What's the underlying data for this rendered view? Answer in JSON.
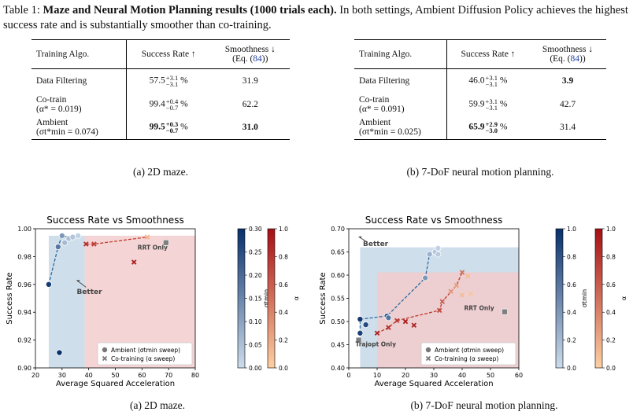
{
  "caption_top": {
    "label": "Table 1:",
    "bold": "Maze and Neural Motion Planning results (1000 trials each).",
    "rest": " In both settings, Ambient Diffusion Policy achieves the highest success rate and is substantially smoother than co-training."
  },
  "tables": [
    {
      "headers": {
        "algo": "Training Algo.",
        "success": "Success Rate ↑",
        "smooth1": "Smoothness ↓",
        "smooth2a": "(Eq. (",
        "smooth2ref": "84",
        "smooth2b": "))"
      },
      "rows": [
        {
          "algo1": "Data Filtering",
          "algo2": "",
          "sr": "57.5",
          "up": "+3.1",
          "down": "−3.1",
          "pct": "%",
          "sm": "31.9"
        },
        {
          "algo1": "Co-train",
          "algo2": "(α* = 0.019)",
          "sr": "99.4",
          "up": "+0.4",
          "down": "−0.7",
          "pct": "%",
          "sm": "62.2"
        },
        {
          "algo1": "Ambient",
          "algo2": "(σt*min = 0.074)",
          "sr": "99.5",
          "up": "+0.3",
          "down": "−0.7",
          "pct": "%",
          "sm": "31.0"
        }
      ],
      "caption": "(a) 2D maze."
    },
    {
      "headers": {
        "algo": "Training Algo.",
        "success": "Success Rate ↑",
        "smooth1": "Smoothness ↓",
        "smooth2a": "(Eq. (",
        "smooth2ref": "84",
        "smooth2b": "))"
      },
      "rows": [
        {
          "algo1": "Data Filtering",
          "algo2": "",
          "sr": "46.0",
          "up": "+3.1",
          "down": "−3.1",
          "pct": "%",
          "sm": "3.9"
        },
        {
          "algo1": "Co-train",
          "algo2": "(α* = 0.091)",
          "sr": "59.9",
          "up": "+3.1",
          "down": "−3.1",
          "pct": "%",
          "sm": "42.7"
        },
        {
          "algo1": "Ambient",
          "algo2": "(σt*min = 0.025)",
          "sr": "65.9",
          "up": "+2.9",
          "down": "−3.0",
          "pct": "%",
          "sm": "31.4"
        }
      ],
      "caption": "(b) 7-DoF neural motion planning."
    }
  ],
  "figure_captions": [
    "(a) 2D maze.",
    "(b) 7-DoF neural motion planning."
  ],
  "colors": {
    "ambient": "#2b6a9e",
    "cotrain": "#c0392b",
    "blue_region": "#c7d8e8",
    "red_region": "#f2cccc"
  },
  "chart_data": [
    {
      "type": "scatter",
      "title": "Success Rate vs Smoothness",
      "xlabel": "Average Squared Acceleration",
      "ylabel": "Success Rate",
      "xlim": [
        20,
        80
      ],
      "ylim": [
        0.9,
        1.0
      ],
      "xticks": [
        "20",
        "30",
        "40",
        "50",
        "60",
        "70",
        "80"
      ],
      "yticks": [
        "0.90",
        "0.92",
        "0.94",
        "0.96",
        "0.98",
        "1.00"
      ],
      "annotations": {
        "better": "Better",
        "rrt": "RRT Only"
      },
      "legend": {
        "ambient": "Ambient (σtmin sweep)",
        "cotrain": "Co-training (α sweep)",
        "position": "bottom-right"
      },
      "ambient": {
        "frontier": [
          [
            25,
            0.96
          ],
          [
            28.5,
            0.987
          ],
          [
            30,
            0.995
          ],
          [
            33,
            0.994
          ],
          [
            36,
            0.995
          ],
          [
            37.5,
            0.995
          ]
        ],
        "points": [
          {
            "x": 25,
            "y": 0.96,
            "c": 0.28
          },
          {
            "x": 28.5,
            "y": 0.987,
            "c": 0.18
          },
          {
            "x": 30,
            "y": 0.995,
            "c": 0.12
          },
          {
            "x": 31,
            "y": 0.99,
            "c": 0.06
          },
          {
            "x": 32.5,
            "y": 0.993,
            "c": 0.05
          },
          {
            "x": 34,
            "y": 0.994,
            "c": 0.04
          },
          {
            "x": 36,
            "y": 0.995,
            "c": 0.02
          },
          {
            "x": 29,
            "y": 0.911,
            "c": 0.3
          }
        ]
      },
      "cotrain": {
        "frontier": [
          [
            39,
            0.989
          ],
          [
            42,
            0.989
          ],
          [
            62,
            0.994
          ]
        ],
        "points": [
          {
            "x": 39,
            "y": 0.989,
            "c": 0.85
          },
          {
            "x": 42,
            "y": 0.989,
            "c": 0.75
          },
          {
            "x": 57,
            "y": 0.976,
            "c": 0.95
          },
          {
            "x": 62,
            "y": 0.994,
            "c": 0.15
          }
        ]
      },
      "rrt_only": {
        "x": 69,
        "y": 0.99
      },
      "regions": {
        "blue": [
          [
            25,
            38.5
          ],
          [
            0.9,
            0.995
          ]
        ],
        "red": [
          [
            38.5,
            80
          ],
          [
            0.9,
            0.995
          ]
        ]
      },
      "colorbars": {
        "ambient": {
          "label": "σtmin",
          "ticks": [
            "0.00",
            "0.05",
            "0.10",
            "0.15",
            "0.20",
            "0.25",
            "0.30"
          ]
        },
        "cotrain": {
          "label": "α",
          "ticks": [
            "0.0",
            "0.2",
            "0.4",
            "0.6",
            "0.8",
            "1.0"
          ]
        }
      }
    },
    {
      "type": "scatter",
      "title": "Success Rate vs Smoothness",
      "xlabel": "Average Squared Acceleration",
      "ylabel": "Success Rate",
      "xlim": [
        0,
        60
      ],
      "ylim": [
        0.4,
        0.7
      ],
      "xticks": [
        "0",
        "10",
        "20",
        "30",
        "40",
        "50",
        "60"
      ],
      "yticks": [
        "0.40",
        "0.45",
        "0.50",
        "0.55",
        "0.60",
        "0.65",
        "0.70"
      ],
      "annotations": {
        "better": "Better",
        "rrt": "RRT Only",
        "trajopt": "Trajopt Only"
      },
      "legend": {
        "ambient": "Ambient (σtmin sweep)",
        "cotrain": "Co-training (α sweep)",
        "position": "bottom-right"
      },
      "ambient": {
        "frontier": [
          [
            4,
            0.475
          ],
          [
            4,
            0.505
          ],
          [
            13.5,
            0.512
          ],
          [
            27,
            0.594
          ],
          [
            28.5,
            0.645
          ],
          [
            31.5,
            0.658
          ]
        ],
        "points": [
          {
            "x": 4,
            "y": 0.475,
            "c": 0.9
          },
          {
            "x": 4,
            "y": 0.505,
            "c": 0.95
          },
          {
            "x": 6,
            "y": 0.493,
            "c": 0.85
          },
          {
            "x": 13.5,
            "y": 0.512,
            "c": 0.8
          },
          {
            "x": 14,
            "y": 0.508,
            "c": 0.6
          },
          {
            "x": 27,
            "y": 0.594,
            "c": 0.4
          },
          {
            "x": 28.5,
            "y": 0.645,
            "c": 0.25
          },
          {
            "x": 30.5,
            "y": 0.65,
            "c": 0.15
          },
          {
            "x": 31.5,
            "y": 0.658,
            "c": 0.05
          },
          {
            "x": 31.5,
            "y": 0.645,
            "c": 0.1
          }
        ]
      },
      "cotrain": {
        "frontier": [
          [
            10,
            0.475
          ],
          [
            14,
            0.487
          ],
          [
            17,
            0.502
          ],
          [
            32,
            0.524
          ],
          [
            33,
            0.543
          ],
          [
            38,
            0.578
          ],
          [
            40,
            0.606
          ]
        ],
        "points": [
          {
            "x": 10,
            "y": 0.475,
            "c": 0.9
          },
          {
            "x": 14,
            "y": 0.487,
            "c": 0.85
          },
          {
            "x": 17,
            "y": 0.502,
            "c": 0.8
          },
          {
            "x": 20,
            "y": 0.5,
            "c": 0.95
          },
          {
            "x": 23,
            "y": 0.492,
            "c": 0.9
          },
          {
            "x": 32,
            "y": 0.524,
            "c": 0.7
          },
          {
            "x": 33,
            "y": 0.543,
            "c": 0.6
          },
          {
            "x": 36,
            "y": 0.565,
            "c": 0.3
          },
          {
            "x": 38,
            "y": 0.578,
            "c": 0.25
          },
          {
            "x": 40,
            "y": 0.606,
            "c": 0.5
          },
          {
            "x": 42,
            "y": 0.598,
            "c": 0.1
          },
          {
            "x": 40,
            "y": 0.557,
            "c": 0.1
          },
          {
            "x": 43,
            "y": 0.56,
            "c": 0.05
          }
        ]
      },
      "rrt_only": {
        "x": 55,
        "y": 0.521
      },
      "trajopt_only": {
        "x": 3.5,
        "y": 0.46
      },
      "regions": {
        "blue": [
          [
            4,
            60
          ],
          [
            0.4,
            0.66
          ]
        ],
        "red": [
          [
            10,
            60
          ],
          [
            0.4,
            0.606
          ]
        ]
      },
      "colorbars": {
        "ambient": {
          "label": "σtmin",
          "ticks": [
            "0.0",
            "0.2",
            "0.4",
            "0.6",
            "0.8",
            "1.0"
          ]
        },
        "cotrain": {
          "label": "α",
          "ticks": [
            "0.0",
            "0.2",
            "0.4",
            "0.6",
            "0.8",
            "1.0"
          ]
        }
      }
    }
  ]
}
